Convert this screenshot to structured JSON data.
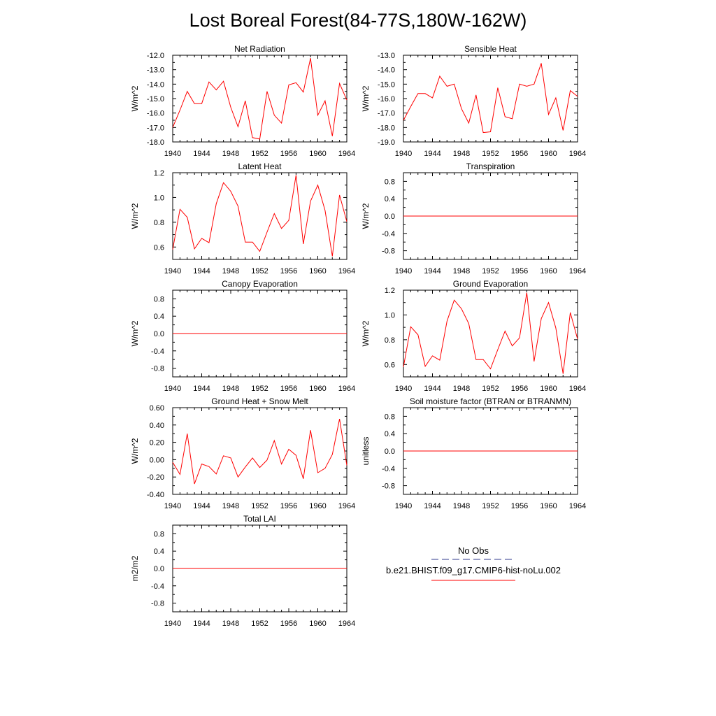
{
  "title": "Lost Boreal Forest(84-77S,180W-162W)",
  "chart_data": [
    {
      "type": "line",
      "title": "Net Radiation",
      "ylabel": "W/m^2",
      "xlim": [
        1940,
        1964
      ],
      "ylim": [
        -18,
        -12
      ],
      "xticks": [
        1940,
        1944,
        1948,
        1952,
        1956,
        1960,
        1964
      ],
      "yticks": [
        -18,
        -17,
        -16,
        -15,
        -14,
        -13,
        -12
      ],
      "ytick_labels": [
        "-18.0",
        "-17.0",
        "-16.0",
        "-15.0",
        "-14.0",
        "-13.0",
        "-12.0"
      ],
      "x": [
        1940,
        1941,
        1942,
        1943,
        1944,
        1945,
        1946,
        1947,
        1948,
        1949,
        1950,
        1951,
        1952,
        1953,
        1954,
        1955,
        1956,
        1957,
        1958,
        1959,
        1960,
        1961,
        1962,
        1963,
        1964
      ],
      "series": [
        {
          "color": "#ff0000",
          "values": [
            -17.0,
            -15.8,
            -14.5,
            -15.35,
            -15.35,
            -13.85,
            -14.4,
            -13.8,
            -15.6,
            -16.95,
            -15.15,
            -17.7,
            -17.8,
            -14.5,
            -16.15,
            -16.7,
            -14.05,
            -13.9,
            -14.55,
            -12.2,
            -16.15,
            -15.15,
            -17.6,
            -13.95,
            -15.1
          ]
        }
      ]
    },
    {
      "type": "line",
      "title": "Sensible Heat",
      "ylabel": "W/m^2",
      "xlim": [
        1940,
        1964
      ],
      "ylim": [
        -19,
        -13
      ],
      "xticks": [
        1940,
        1944,
        1948,
        1952,
        1956,
        1960,
        1964
      ],
      "yticks": [
        -19,
        -18,
        -17,
        -16,
        -15,
        -14,
        -13
      ],
      "ytick_labels": [
        "-19.0",
        "-18.0",
        "-17.0",
        "-16.0",
        "-15.0",
        "-14.0",
        "-13.0"
      ],
      "x": [
        1940,
        1941,
        1942,
        1943,
        1944,
        1945,
        1946,
        1947,
        1948,
        1949,
        1950,
        1951,
        1952,
        1953,
        1954,
        1955,
        1956,
        1957,
        1958,
        1959,
        1960,
        1961,
        1962,
        1963,
        1964
      ],
      "series": [
        {
          "color": "#ff0000",
          "values": [
            -17.5,
            -16.55,
            -15.65,
            -15.65,
            -15.95,
            -14.45,
            -15.15,
            -15.0,
            -16.7,
            -17.7,
            -15.75,
            -18.35,
            -18.3,
            -15.25,
            -17.25,
            -17.4,
            -15.0,
            -15.15,
            -15.0,
            -13.55,
            -17.1,
            -15.95,
            -18.2,
            -15.45,
            -15.85
          ]
        }
      ]
    },
    {
      "type": "line",
      "title": "Latent Heat",
      "ylabel": "W/m^2",
      "xlim": [
        1940,
        1964
      ],
      "ylim": [
        0.5,
        1.2
      ],
      "xticks": [
        1940,
        1944,
        1948,
        1952,
        1956,
        1960,
        1964
      ],
      "yticks": [
        0.6,
        0.8,
        1.0,
        1.2
      ],
      "ytick_labels": [
        "0.6",
        "0.8",
        "1.0",
        "1.2"
      ],
      "x": [
        1940,
        1941,
        1942,
        1943,
        1944,
        1945,
        1946,
        1947,
        1948,
        1949,
        1950,
        1951,
        1952,
        1953,
        1954,
        1955,
        1956,
        1957,
        1958,
        1959,
        1960,
        1961,
        1962,
        1963,
        1964
      ],
      "series": [
        {
          "color": "#ff0000",
          "values": [
            0.58,
            0.905,
            0.84,
            0.585,
            0.67,
            0.635,
            0.95,
            1.12,
            1.05,
            0.93,
            0.64,
            0.64,
            0.565,
            0.72,
            0.87,
            0.75,
            0.815,
            1.18,
            0.625,
            0.97,
            1.1,
            0.895,
            0.525,
            1.02,
            0.805
          ]
        }
      ]
    },
    {
      "type": "line",
      "title": "Transpiration",
      "ylabel": "W/m^2",
      "xlim": [
        1940,
        1964
      ],
      "ylim": [
        -1,
        1
      ],
      "xticks": [
        1940,
        1944,
        1948,
        1952,
        1956,
        1960,
        1964
      ],
      "yticks": [
        -0.8,
        -0.4,
        0.0,
        0.4,
        0.8
      ],
      "ytick_labels": [
        "-0.8",
        "-0.4",
        "0.0",
        "0.4",
        "0.8"
      ],
      "x": [
        1940,
        1964
      ],
      "series": [
        {
          "color": "#ff0000",
          "values": [
            0,
            0
          ]
        }
      ]
    },
    {
      "type": "line",
      "title": "Canopy Evaporation",
      "ylabel": "W/m^2",
      "xlim": [
        1940,
        1964
      ],
      "ylim": [
        -1,
        1
      ],
      "xticks": [
        1940,
        1944,
        1948,
        1952,
        1956,
        1960,
        1964
      ],
      "yticks": [
        -0.8,
        -0.4,
        0.0,
        0.4,
        0.8
      ],
      "ytick_labels": [
        "-0.8",
        "-0.4",
        "0.0",
        "0.4",
        "0.8"
      ],
      "x": [
        1940,
        1964
      ],
      "series": [
        {
          "color": "#ff0000",
          "values": [
            0,
            0
          ]
        }
      ]
    },
    {
      "type": "line",
      "title": "Ground Evaporation",
      "ylabel": "W/m^2",
      "xlim": [
        1940,
        1964
      ],
      "ylim": [
        0.5,
        1.2
      ],
      "xticks": [
        1940,
        1944,
        1948,
        1952,
        1956,
        1960,
        1964
      ],
      "yticks": [
        0.6,
        0.8,
        1.0,
        1.2
      ],
      "ytick_labels": [
        "0.6",
        "0.8",
        "1.0",
        "1.2"
      ],
      "x": [
        1940,
        1941,
        1942,
        1943,
        1944,
        1945,
        1946,
        1947,
        1948,
        1949,
        1950,
        1951,
        1952,
        1953,
        1954,
        1955,
        1956,
        1957,
        1958,
        1959,
        1960,
        1961,
        1962,
        1963,
        1964
      ],
      "series": [
        {
          "color": "#ff0000",
          "values": [
            0.58,
            0.905,
            0.84,
            0.585,
            0.67,
            0.635,
            0.95,
            1.12,
            1.05,
            0.93,
            0.64,
            0.64,
            0.565,
            0.72,
            0.87,
            0.75,
            0.815,
            1.18,
            0.625,
            0.97,
            1.1,
            0.895,
            0.525,
            1.02,
            0.805
          ]
        }
      ]
    },
    {
      "type": "line",
      "title": "Ground Heat + Snow Melt",
      "ylabel": "W/m^2",
      "xlim": [
        1940,
        1964
      ],
      "ylim": [
        -0.4,
        0.6
      ],
      "xticks": [
        1940,
        1944,
        1948,
        1952,
        1956,
        1960,
        1964
      ],
      "yticks": [
        -0.4,
        -0.2,
        0.0,
        0.2,
        0.4,
        0.6
      ],
      "ytick_labels": [
        "-0.40",
        "-0.20",
        "0.00",
        "0.20",
        "0.40",
        "0.60"
      ],
      "x": [
        1940,
        1941,
        1942,
        1943,
        1944,
        1945,
        1946,
        1947,
        1948,
        1949,
        1950,
        1951,
        1952,
        1953,
        1954,
        1955,
        1956,
        1957,
        1958,
        1959,
        1960,
        1961,
        1962,
        1963,
        1964
      ],
      "series": [
        {
          "color": "#ff0000",
          "values": [
            -0.03,
            -0.17,
            0.3,
            -0.28,
            -0.05,
            -0.08,
            -0.165,
            0.045,
            0.02,
            -0.2,
            -0.085,
            0.02,
            -0.09,
            -0.005,
            0.22,
            -0.05,
            0.12,
            0.05,
            -0.22,
            0.34,
            -0.15,
            -0.1,
            0.06,
            0.47,
            -0.065
          ]
        }
      ]
    },
    {
      "type": "line",
      "title": "Soil moisture factor (BTRAN or BTRANMN)",
      "ylabel": "unitless",
      "xlim": [
        1940,
        1964
      ],
      "ylim": [
        -1,
        1
      ],
      "xticks": [
        1940,
        1944,
        1948,
        1952,
        1956,
        1960,
        1964
      ],
      "yticks": [
        -0.8,
        -0.4,
        0.0,
        0.4,
        0.8
      ],
      "ytick_labels": [
        "-0.8",
        "-0.4",
        "0.0",
        "0.4",
        "0.8"
      ],
      "x": [
        1940,
        1964
      ],
      "series": [
        {
          "color": "#ff0000",
          "values": [
            0,
            0
          ]
        }
      ]
    },
    {
      "type": "line",
      "title": "Total LAI",
      "ylabel": "m2/m2",
      "xlim": [
        1940,
        1964
      ],
      "ylim": [
        -1,
        1
      ],
      "xticks": [
        1940,
        1944,
        1948,
        1952,
        1956,
        1960,
        1964
      ],
      "yticks": [
        -0.8,
        -0.4,
        0.0,
        0.4,
        0.8
      ],
      "ytick_labels": [
        "-0.8",
        "-0.4",
        "0.0",
        "0.4",
        "0.8"
      ],
      "x": [
        1940,
        1964
      ],
      "series": [
        {
          "color": "#ff0000",
          "values": [
            0,
            0
          ]
        }
      ]
    }
  ],
  "legend": {
    "entries": [
      {
        "label": "No Obs",
        "color": "#2f3a8c",
        "style": "dashed"
      },
      {
        "label": "b.e21.BHIST.f09_g17.CMIP6-hist-noLu.002",
        "color": "#ff0000",
        "style": "solid"
      }
    ]
  }
}
